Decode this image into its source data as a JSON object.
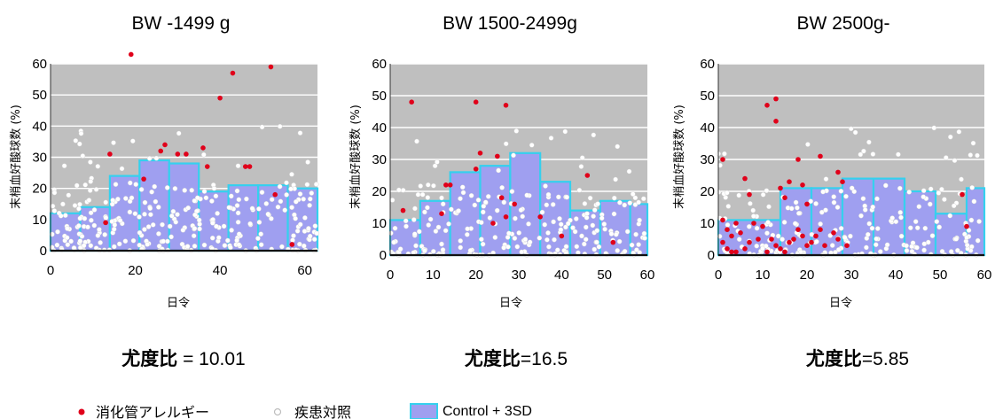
{
  "chart_data": [
    {
      "type": "scatter",
      "title": "BW -1499 g",
      "ylabel": "末梢血好酸球数 (%)",
      "xlabel": "日令",
      "x_ticks": [
        0,
        20,
        40,
        60
      ],
      "y_ticks": [
        0,
        10,
        20,
        30,
        40,
        50,
        60
      ],
      "xlim": [
        0,
        63
      ],
      "ylim": [
        0,
        60
      ],
      "control_3sd_steps": [
        {
          "x0": 0,
          "x1": 7,
          "y": 12
        },
        {
          "x0": 7,
          "x1": 14,
          "y": 14
        },
        {
          "x0": 14,
          "x1": 21,
          "y": 24
        },
        {
          "x0": 21,
          "x1": 28,
          "y": 29
        },
        {
          "x0": 28,
          "x1": 35,
          "y": 28
        },
        {
          "x0": 35,
          "x1": 42,
          "y": 19
        },
        {
          "x0": 42,
          "x1": 49,
          "y": 21
        },
        {
          "x0": 49,
          "x1": 56,
          "y": 21
        },
        {
          "x0": 56,
          "x1": 63,
          "y": 20
        }
      ],
      "allergy_points": [
        [
          19,
          63
        ],
        [
          14,
          31
        ],
        [
          26,
          32
        ],
        [
          27,
          34
        ],
        [
          30,
          31
        ],
        [
          32,
          31
        ],
        [
          36,
          33
        ],
        [
          37,
          27
        ],
        [
          40,
          49
        ],
        [
          43,
          57
        ],
        [
          46,
          27
        ],
        [
          47,
          27
        ],
        [
          52,
          59
        ],
        [
          53,
          18
        ],
        [
          57,
          2
        ],
        [
          13,
          9
        ],
        [
          22,
          23
        ]
      ],
      "ratio_label": "尤度比",
      "ratio_value": " = 10.01"
    },
    {
      "type": "scatter",
      "title": "BW 1500-2499g",
      "ylabel": "末梢血好酸球数 (%)",
      "xlabel": "日令",
      "x_ticks": [
        0,
        10,
        20,
        30,
        40,
        50,
        60
      ],
      "y_ticks": [
        0,
        10,
        20,
        30,
        40,
        50,
        60
      ],
      "xlim": [
        0,
        60
      ],
      "ylim": [
        0,
        60
      ],
      "control_3sd_steps": [
        {
          "x0": 0,
          "x1": 7,
          "y": 11
        },
        {
          "x0": 7,
          "x1": 14,
          "y": 17
        },
        {
          "x0": 14,
          "x1": 21,
          "y": 26
        },
        {
          "x0": 21,
          "x1": 28,
          "y": 28
        },
        {
          "x0": 28,
          "x1": 35,
          "y": 32
        },
        {
          "x0": 35,
          "x1": 42,
          "y": 23
        },
        {
          "x0": 42,
          "x1": 49,
          "y": 14
        },
        {
          "x0": 49,
          "x1": 56,
          "y": 17
        },
        {
          "x0": 56,
          "x1": 60,
          "y": 16
        }
      ],
      "allergy_points": [
        [
          5,
          48
        ],
        [
          20,
          48
        ],
        [
          27,
          47
        ],
        [
          21,
          32
        ],
        [
          25,
          31
        ],
        [
          20,
          27
        ],
        [
          13,
          22
        ],
        [
          14,
          22
        ],
        [
          26,
          18
        ],
        [
          12,
          13
        ],
        [
          27,
          12
        ],
        [
          3,
          14
        ],
        [
          35,
          12
        ],
        [
          46,
          25
        ],
        [
          40,
          6
        ],
        [
          52,
          4
        ],
        [
          29,
          16
        ],
        [
          24,
          10
        ]
      ],
      "ratio_label": "尤度比",
      "ratio_value": "=16.5"
    },
    {
      "type": "scatter",
      "title": "BW 2500g-",
      "ylabel": "末梢血好酸球数 (%)",
      "xlabel": "日令",
      "x_ticks": [
        0,
        10,
        20,
        30,
        40,
        50,
        60
      ],
      "y_ticks": [
        0,
        10,
        20,
        30,
        40,
        50,
        60
      ],
      "xlim": [
        0,
        60
      ],
      "ylim": [
        0,
        60
      ],
      "control_3sd_steps": [
        {
          "x0": 0,
          "x1": 14,
          "y": 11
        },
        {
          "x0": 14,
          "x1": 21,
          "y": 21
        },
        {
          "x0": 21,
          "x1": 28,
          "y": 21
        },
        {
          "x0": 28,
          "x1": 35,
          "y": 24
        },
        {
          "x0": 35,
          "x1": 42,
          "y": 24
        },
        {
          "x0": 42,
          "x1": 49,
          "y": 20
        },
        {
          "x0": 49,
          "x1": 56,
          "y": 13
        },
        {
          "x0": 56,
          "x1": 60,
          "y": 21
        }
      ],
      "allergy_points": [
        [
          13,
          49
        ],
        [
          11,
          47
        ],
        [
          13,
          42
        ],
        [
          1,
          30
        ],
        [
          18,
          30
        ],
        [
          23,
          31
        ],
        [
          16,
          23
        ],
        [
          19,
          22
        ],
        [
          27,
          26
        ],
        [
          28,
          23
        ],
        [
          6,
          24
        ],
        [
          7,
          19
        ],
        [
          14,
          21
        ],
        [
          15,
          18
        ],
        [
          20,
          16
        ],
        [
          55,
          19
        ],
        [
          56,
          9
        ],
        [
          1,
          11
        ],
        [
          2,
          8
        ],
        [
          3,
          6
        ],
        [
          4,
          10
        ],
        [
          5,
          7
        ],
        [
          8,
          10
        ],
        [
          9,
          5
        ],
        [
          10,
          9
        ],
        [
          12,
          5
        ],
        [
          13,
          3
        ],
        [
          2,
          2
        ],
        [
          4,
          1
        ],
        [
          6,
          2
        ],
        [
          14,
          2
        ],
        [
          15,
          1
        ],
        [
          16,
          4
        ],
        [
          18,
          8
        ],
        [
          19,
          6
        ],
        [
          21,
          4
        ],
        [
          22,
          6
        ],
        [
          24,
          3
        ],
        [
          27,
          5
        ],
        [
          29,
          3
        ],
        [
          1,
          4
        ],
        [
          3,
          1
        ],
        [
          11,
          1
        ],
        [
          7,
          4
        ],
        [
          17,
          5
        ],
        [
          23,
          8
        ],
        [
          20,
          3
        ],
        [
          26,
          7
        ]
      ],
      "ratio_label": "尤度比",
      "ratio_value": "=5.85"
    }
  ],
  "legend": {
    "allergy": "消化管アレルギー",
    "control": "疾患対照",
    "sd_band": "Control + 3SD"
  },
  "colors": {
    "plot_bg": "#bfbfbf",
    "band_fill": "#9f9ff0",
    "band_edge": "#35d0ee",
    "gridline": "#ffffff",
    "allergy_dot": "#e0001a",
    "control_dot": "#ffffff",
    "control_dot_edge": "#cfcfcf"
  }
}
